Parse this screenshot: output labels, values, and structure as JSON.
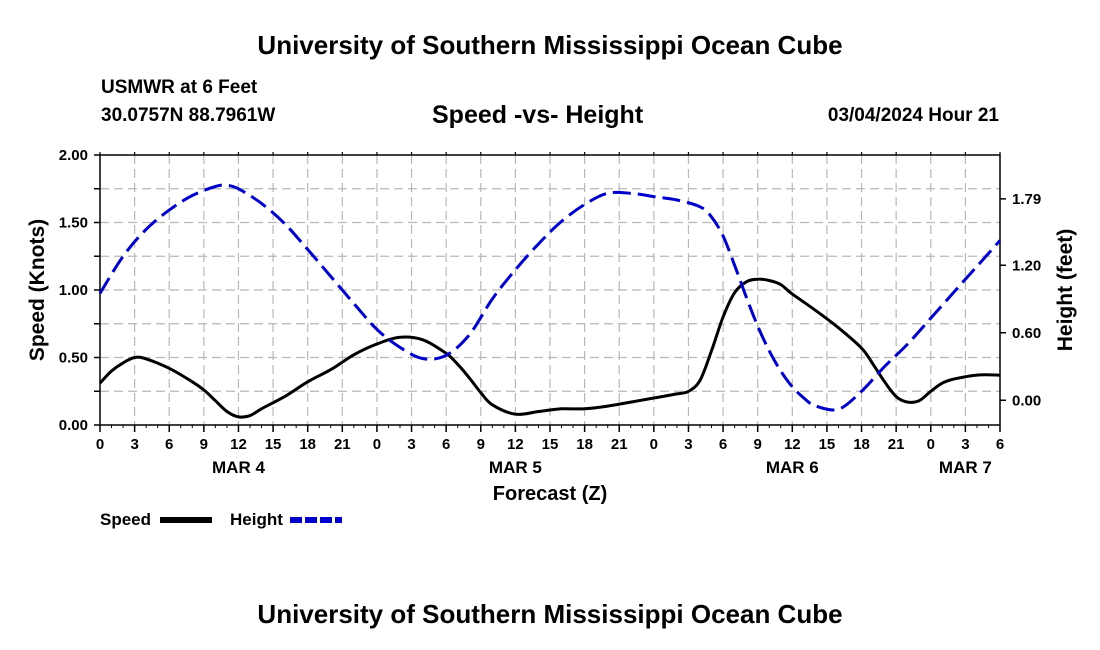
{
  "header": {
    "title": "University of Southern Mississippi Ocean Cube",
    "station": "USMWR at 6 Feet",
    "coords": "30.0757N  88.7961W",
    "subtitle": "Speed -vs- Height",
    "datetime": "03/04/2024 Hour 21"
  },
  "footer": {
    "title": "University of Southern Mississippi Ocean Cube"
  },
  "chart_data": {
    "type": "line",
    "xlabel": "Forecast (Z)",
    "ylabel": "Speed (Knots)",
    "y2label": "Height (feet)",
    "x_range_hours": [
      0,
      78
    ],
    "xticks": [
      0,
      3,
      6,
      9,
      12,
      15,
      18,
      21,
      24,
      27,
      30,
      33,
      36,
      39,
      42,
      45,
      48,
      51,
      54,
      57,
      60,
      63,
      66,
      69,
      72,
      75,
      78
    ],
    "xtick_labels": [
      "0",
      "3",
      "6",
      "9",
      "12",
      "15",
      "18",
      "21",
      "0",
      "3",
      "6",
      "9",
      "12",
      "15",
      "18",
      "21",
      "0",
      "3",
      "6",
      "9",
      "12",
      "15",
      "18",
      "21",
      "0",
      "3",
      "6"
    ],
    "day_labels": [
      {
        "label": "MAR 4",
        "hour": 12
      },
      {
        "label": "MAR 5",
        "hour": 36
      },
      {
        "label": "MAR 6",
        "hour": 60
      },
      {
        "label": "MAR 7",
        "hour": 75
      }
    ],
    "ylim": [
      0,
      2.0
    ],
    "yticks": [
      0,
      0.5,
      1.0,
      1.5,
      2.0
    ],
    "ytick_labels": [
      "0.00",
      "0.50",
      "1.00",
      "1.50",
      "2.00"
    ],
    "y2lim": [
      -0.22,
      2.18
    ],
    "y2ticks": [
      0,
      0.6,
      1.2,
      1.79
    ],
    "y2tick_labels": [
      "0.00",
      "0.60",
      "1.20",
      "1.79"
    ],
    "series": [
      {
        "name": "Speed",
        "axis": "left",
        "color": "#000000",
        "style": "solid",
        "x": [
          0,
          1,
          2,
          3,
          4,
          6,
          8,
          9,
          10,
          11,
          12,
          13,
          14,
          16,
          18,
          20,
          22,
          24,
          26,
          28,
          30,
          31,
          32,
          33,
          34,
          36,
          38,
          40,
          42,
          44,
          46,
          48,
          50,
          51,
          52,
          53,
          54,
          55,
          56,
          57,
          58,
          59,
          60,
          62,
          64,
          66,
          67,
          68,
          69,
          70,
          71,
          72,
          73,
          74,
          76,
          78
        ],
        "y": [
          0.31,
          0.4,
          0.46,
          0.5,
          0.49,
          0.42,
          0.32,
          0.26,
          0.18,
          0.1,
          0.06,
          0.07,
          0.12,
          0.21,
          0.32,
          0.41,
          0.52,
          0.6,
          0.65,
          0.63,
          0.53,
          0.45,
          0.35,
          0.24,
          0.15,
          0.08,
          0.1,
          0.12,
          0.12,
          0.14,
          0.17,
          0.2,
          0.23,
          0.25,
          0.33,
          0.55,
          0.8,
          0.98,
          1.06,
          1.08,
          1.07,
          1.04,
          0.97,
          0.85,
          0.72,
          0.57,
          0.45,
          0.32,
          0.21,
          0.17,
          0.18,
          0.25,
          0.31,
          0.34,
          0.37,
          0.37
        ]
      },
      {
        "name": "Height",
        "axis": "right",
        "color": "#0000cc",
        "style": "dashed",
        "x": [
          0,
          2,
          4,
          6,
          8,
          10,
          11,
          12,
          14,
          16,
          18,
          20,
          22,
          24,
          26,
          28,
          30,
          32,
          34,
          36,
          38,
          40,
          42,
          44,
          46,
          48,
          50,
          52,
          53,
          54,
          55,
          56,
          57,
          58,
          59,
          60,
          61,
          62,
          64,
          66,
          68,
          70,
          72,
          74,
          76,
          78
        ],
        "y": [
          0.95,
          1.28,
          1.52,
          1.69,
          1.82,
          1.9,
          1.91,
          1.88,
          1.75,
          1.57,
          1.34,
          1.1,
          0.86,
          0.63,
          0.47,
          0.37,
          0.4,
          0.58,
          0.9,
          1.16,
          1.39,
          1.59,
          1.74,
          1.84,
          1.84,
          1.81,
          1.78,
          1.72,
          1.63,
          1.46,
          1.2,
          0.92,
          0.66,
          0.44,
          0.26,
          0.12,
          0.02,
          -0.05,
          -0.08,
          0.08,
          0.3,
          0.5,
          0.73,
          0.96,
          1.19,
          1.42
        ]
      }
    ],
    "legend": {
      "position": "bottom-left",
      "items": [
        "Speed",
        "Height"
      ]
    }
  }
}
